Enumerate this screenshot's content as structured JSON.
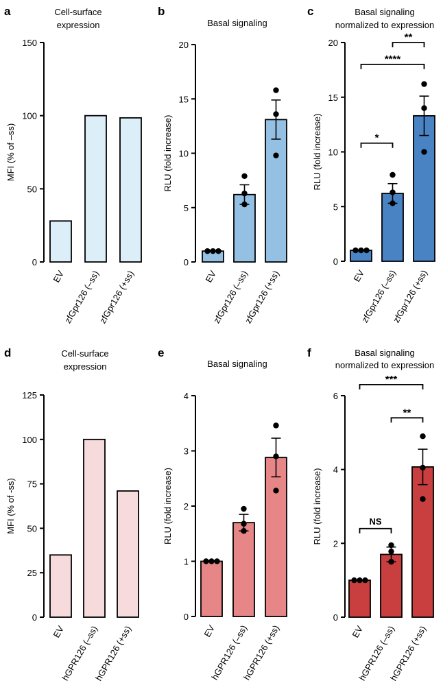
{
  "chart_data": [
    {
      "panel": "a",
      "type": "bar",
      "title": "Cell-surface\nexpression",
      "ylabel": "MFI (% of –ss)",
      "ylim": [
        0,
        150
      ],
      "yticks": [
        0,
        50,
        100,
        150
      ],
      "categories": [
        "EV",
        "zfGpr126 (–ss)",
        "zfGpr126 (+ss)"
      ],
      "values": [
        28,
        100,
        98.5
      ],
      "bar_color": "#dceef7",
      "error": [
        null,
        null,
        null
      ],
      "points": [
        [],
        [],
        []
      ],
      "significance": []
    },
    {
      "panel": "b",
      "type": "bar",
      "title": "Basal signaling",
      "ylabel": "RLU (fold increase)",
      "ylim": [
        0,
        20
      ],
      "yticks": [
        0,
        5,
        10,
        15,
        20
      ],
      "categories": [
        "EV",
        "zfGpr126 (–ss)",
        "zfGpr126 (+ss)"
      ],
      "values": [
        1,
        6.2,
        13.1
      ],
      "bar_color": "#93c0e3",
      "error": [
        0,
        0.9,
        1.8
      ],
      "points": [
        [
          1,
          1,
          1
        ],
        [
          5.3,
          6.3,
          7.9
        ],
        [
          9.8,
          13.6,
          15.8
        ]
      ],
      "significance": []
    },
    {
      "panel": "c",
      "type": "bar",
      "title": "Basal signaling\nnormalized to expression",
      "ylabel": "RLU (fold increase)",
      "ylim": [
        0,
        20
      ],
      "yticks": [
        0,
        5,
        10,
        15,
        20
      ],
      "categories": [
        "EV",
        "zfGpr126 (–ss)",
        "zfGpr126 (+ss)"
      ],
      "values": [
        1,
        6.2,
        13.3
      ],
      "bar_color": "#4a83c4",
      "error": [
        0,
        0.9,
        1.8
      ],
      "points": [
        [
          1,
          1,
          1
        ],
        [
          5.3,
          6.3,
          7.9
        ],
        [
          10,
          14,
          16.2
        ]
      ],
      "significance": [
        {
          "from": 0,
          "to": 1,
          "y": 10.8,
          "label": "*"
        },
        {
          "from": 0,
          "to": 2,
          "y": 18.0,
          "label": "****"
        },
        {
          "from": 1,
          "to": 2,
          "y": 20.0,
          "label": "**"
        }
      ]
    },
    {
      "panel": "d",
      "type": "bar",
      "title": "Cell-surface\nexpression",
      "ylabel": "MFI (% of -ss)",
      "ylim": [
        0,
        125
      ],
      "yticks": [
        0,
        25,
        50,
        75,
        100,
        125
      ],
      "categories": [
        "EV",
        "hGPR126 (–ss)",
        "hGPR126 (+ss)"
      ],
      "values": [
        35,
        100,
        71
      ],
      "bar_color": "#f7dadb",
      "error": [
        null,
        null,
        null
      ],
      "points": [
        [],
        [],
        []
      ],
      "significance": []
    },
    {
      "panel": "e",
      "type": "bar",
      "title": "Basal signaling",
      "ylabel": "RLU (fold increase)",
      "ylim": [
        0,
        4
      ],
      "yticks": [
        0,
        1,
        2,
        3,
        4
      ],
      "categories": [
        "EV",
        "hGPR126 (–ss)",
        "hGPR126 (+ss)"
      ],
      "values": [
        1,
        1.7,
        2.88
      ],
      "bar_color": "#e68686",
      "error": [
        0,
        0.15,
        0.35
      ],
      "points": [
        [
          1,
          1,
          1
        ],
        [
          1.55,
          1.68,
          1.95
        ],
        [
          2.28,
          2.9,
          3.46
        ]
      ],
      "significance": []
    },
    {
      "panel": "f",
      "type": "bar",
      "title": "Basal signaling\nnormalized to expression",
      "ylabel": "RLU (fold increase)",
      "ylim": [
        0,
        6
      ],
      "yticks": [
        0,
        2,
        4,
        6
      ],
      "categories": [
        "EV",
        "hGPR126 (–ss)",
        "hGPR126 (+ss)"
      ],
      "values": [
        1,
        1.7,
        4.07
      ],
      "bar_color": "#c93f3f",
      "error": [
        0,
        0.2,
        0.48
      ],
      "points": [
        [
          1,
          1,
          1
        ],
        [
          1.5,
          1.78,
          1.95
        ],
        [
          3.2,
          4.05,
          4.9
        ]
      ],
      "significance": [
        {
          "from": 0,
          "to": 1,
          "y": 2.4,
          "label": "NS"
        },
        {
          "from": 1,
          "to": 2,
          "y": 5.4,
          "label": "**"
        },
        {
          "from": 0,
          "to": 2,
          "y": 6.3,
          "label": "***"
        }
      ]
    }
  ]
}
